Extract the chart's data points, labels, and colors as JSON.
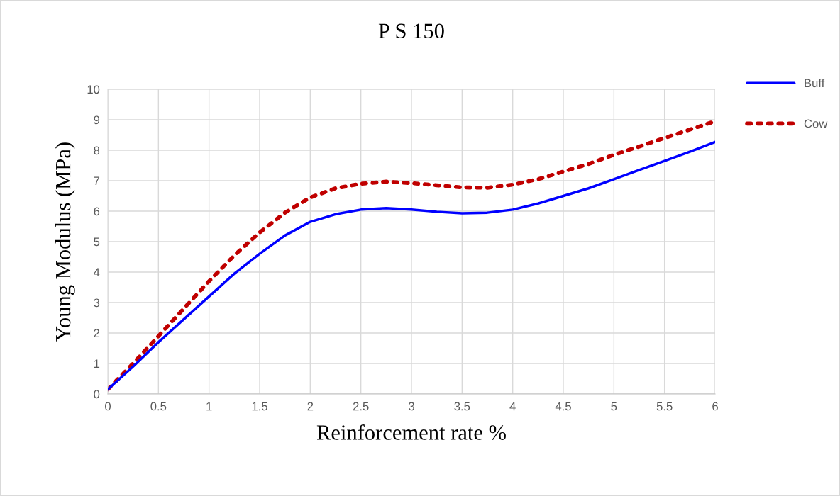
{
  "chart_data": {
    "type": "line",
    "title": "P S 150",
    "xlabel": "Reinforcement rate %",
    "ylabel": "Young Modulus (MPa)",
    "x": [
      0,
      0.25,
      0.5,
      0.75,
      1,
      1.25,
      1.5,
      1.75,
      2,
      2.25,
      2.5,
      2.75,
      3,
      3.25,
      3.5,
      3.75,
      4,
      4.25,
      4.5,
      4.75,
      5,
      5.25,
      5.5,
      5.75,
      6
    ],
    "series": [
      {
        "name": "Buff",
        "color": "#0000ff",
        "line_style": "solid",
        "values": [
          0.15,
          0.9,
          1.7,
          2.45,
          3.2,
          3.95,
          4.6,
          5.2,
          5.65,
          5.9,
          6.05,
          6.1,
          6.05,
          5.98,
          5.93,
          5.95,
          6.05,
          6.25,
          6.5,
          6.75,
          7.05,
          7.35,
          7.65,
          7.95,
          8.27
        ]
      },
      {
        "name": "Cow",
        "color": "#c00000",
        "line_style": "dotted",
        "values": [
          0.15,
          1.0,
          1.9,
          2.8,
          3.7,
          4.55,
          5.3,
          5.95,
          6.45,
          6.75,
          6.9,
          6.97,
          6.92,
          6.85,
          6.78,
          6.77,
          6.87,
          7.05,
          7.3,
          7.55,
          7.85,
          8.12,
          8.4,
          8.68,
          8.95
        ]
      }
    ],
    "xlim": [
      0,
      6
    ],
    "xticks": [
      0,
      0.5,
      1,
      1.5,
      2,
      2.5,
      3,
      3.5,
      4,
      4.5,
      5,
      5.5,
      6
    ],
    "ylim": [
      0,
      10
    ],
    "yticks": [
      0,
      1,
      2,
      3,
      4,
      5,
      6,
      7,
      8,
      9,
      10
    ],
    "grid": true,
    "legend": "top right",
    "marker": "none"
  }
}
